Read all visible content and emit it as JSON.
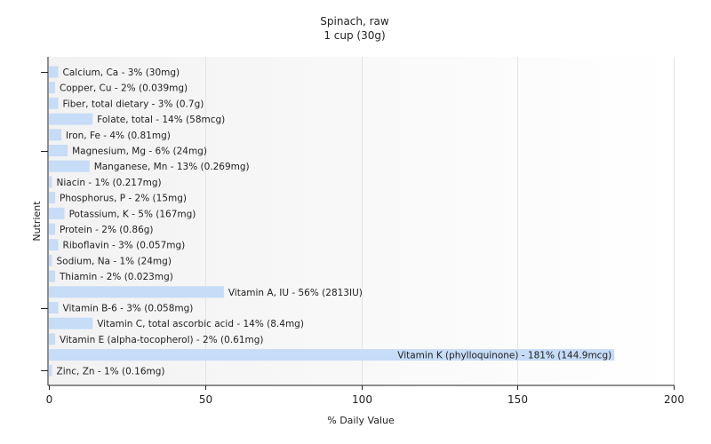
{
  "chart_data": {
    "type": "bar",
    "orientation": "horizontal",
    "title": "Spinach, raw",
    "subtitle": "1 cup (30g)",
    "xlabel": "% Daily Value",
    "ylabel": "Nutrient",
    "xlim": [
      0,
      200
    ],
    "xticks": [
      0,
      50,
      100,
      150,
      200
    ],
    "grid": true,
    "legend": "none",
    "bar_color": "#c6dcf7",
    "background_gradient": [
      "#f2f2f2",
      "#ffffff"
    ],
    "categories": [
      "Calcium, Ca",
      "Copper, Cu",
      "Fiber, total dietary",
      "Folate, total",
      "Iron, Fe",
      "Magnesium, Mg",
      "Manganese, Mn",
      "Niacin",
      "Phosphorus, P",
      "Potassium, K",
      "Protein",
      "Riboflavin",
      "Sodium, Na",
      "Thiamin",
      "Vitamin A, IU",
      "Vitamin B-6",
      "Vitamin C, total ascorbic acid",
      "Vitamin E (alpha-tocopherol)",
      "Vitamin K (phylloquinone)",
      "Zinc, Zn"
    ],
    "values": [
      3,
      2,
      3,
      14,
      4,
      6,
      13,
      1,
      2,
      5,
      2,
      3,
      1,
      2,
      56,
      3,
      14,
      2,
      181,
      1
    ],
    "labels": [
      "Calcium, Ca - 3% (30mg)",
      "Copper, Cu - 2% (0.039mg)",
      "Fiber, total dietary - 3% (0.7g)",
      "Folate, total - 14% (58mcg)",
      "Iron, Fe - 4% (0.81mg)",
      "Magnesium, Mg - 6% (24mg)",
      "Manganese, Mn - 13% (0.269mg)",
      "Niacin - 1% (0.217mg)",
      "Phosphorus, P - 2% (15mg)",
      "Potassium, K - 5% (167mg)",
      "Protein - 2% (0.86g)",
      "Riboflavin - 3% (0.057mg)",
      "Sodium, Na - 1% (24mg)",
      "Thiamin - 2% (0.023mg)",
      "Vitamin A, IU - 56% (2813IU)",
      "Vitamin B-6 - 3% (0.058mg)",
      "Vitamin C, total ascorbic acid - 14% (8.4mg)",
      "Vitamin E (alpha-tocopherol) - 2% (0.61mg)",
      "Vitamin K (phylloquinone) - 181% (144.9mcg)",
      "Zinc, Zn - 1% (0.16mg)"
    ]
  }
}
